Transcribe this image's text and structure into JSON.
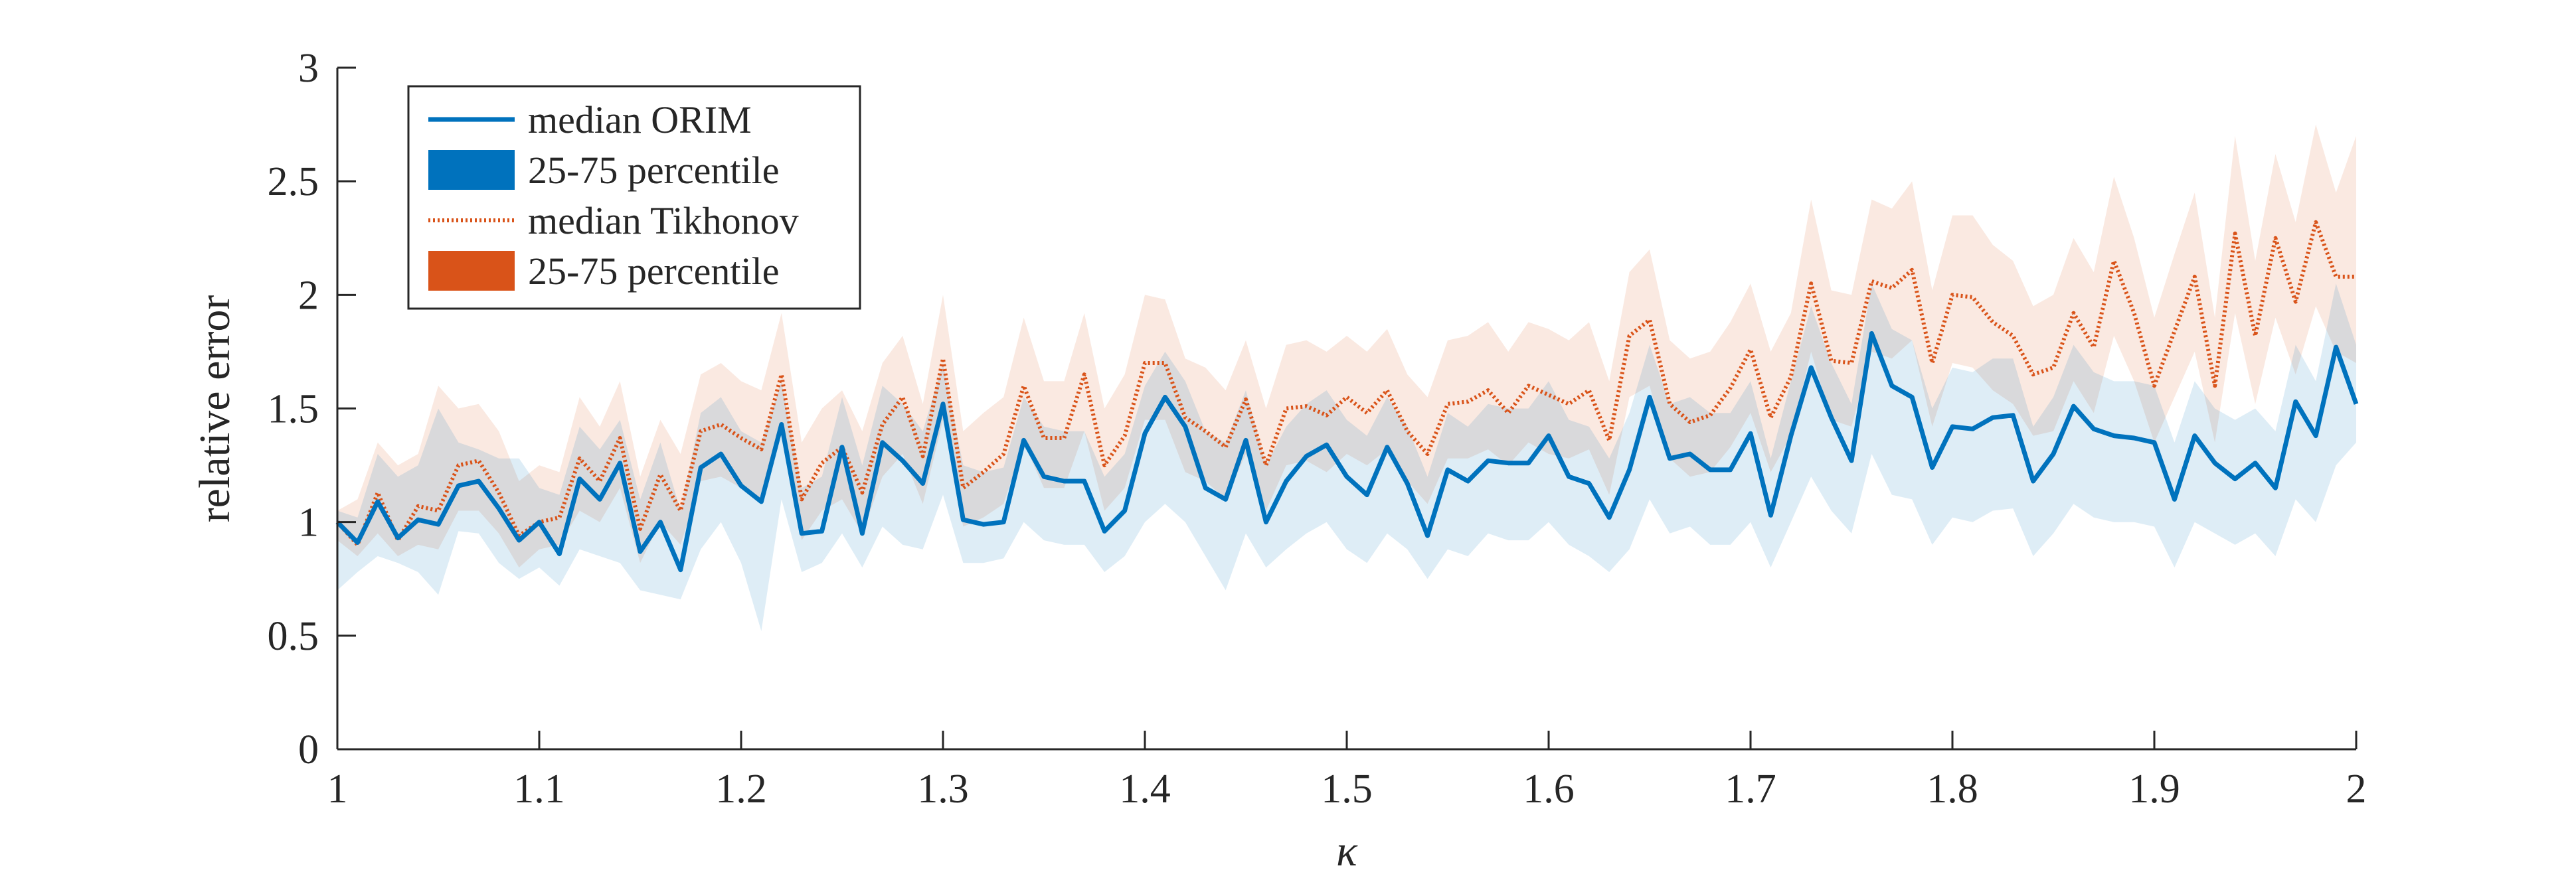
{
  "chart_data": {
    "type": "line",
    "xlabel": "κ",
    "ylabel": "relative error",
    "xlim": [
      1,
      2
    ],
    "ylim": [
      0,
      3
    ],
    "xticks": [
      "1",
      "1.1",
      "1.2",
      "1.3",
      "1.4",
      "1.5",
      "1.6",
      "1.7",
      "1.8",
      "1.9",
      "2"
    ],
    "yticks": [
      "0",
      "0.5",
      "1",
      "1.5",
      "2",
      "2.5",
      "3"
    ],
    "grid": false,
    "legend_position": "top-left",
    "legend": [
      {
        "label": "median ORIM",
        "kind": "line",
        "color": "#0072BD"
      },
      {
        "label": "25-75 percentile",
        "kind": "patch",
        "color": "#0072BD"
      },
      {
        "label": "median Tikhonov",
        "kind": "dotted-line",
        "color": "#D95319"
      },
      {
        "label": "25-75 percentile",
        "kind": "patch",
        "color": "#D95319"
      }
    ],
    "x": [
      1.0,
      1.01,
      1.02,
      1.03,
      1.04,
      1.05,
      1.06,
      1.07,
      1.08,
      1.09,
      1.1,
      1.11,
      1.12,
      1.13,
      1.14,
      1.15,
      1.16,
      1.17,
      1.18,
      1.19,
      1.2,
      1.21,
      1.22,
      1.23,
      1.24,
      1.25,
      1.26,
      1.27,
      1.28,
      1.29,
      1.3,
      1.31,
      1.32,
      1.33,
      1.34,
      1.35,
      1.36,
      1.37,
      1.38,
      1.39,
      1.4,
      1.41,
      1.42,
      1.43,
      1.44,
      1.45,
      1.46,
      1.47,
      1.48,
      1.49,
      1.5,
      1.51,
      1.52,
      1.53,
      1.54,
      1.55,
      1.56,
      1.57,
      1.58,
      1.59,
      1.6,
      1.61,
      1.62,
      1.63,
      1.64,
      1.65,
      1.66,
      1.67,
      1.68,
      1.69,
      1.7,
      1.71,
      1.72,
      1.73,
      1.74,
      1.75,
      1.76,
      1.77,
      1.78,
      1.79,
      1.8,
      1.81,
      1.82,
      1.83,
      1.84,
      1.85,
      1.86,
      1.87,
      1.88,
      1.89,
      1.9,
      1.91,
      1.92,
      1.93,
      1.94,
      1.95,
      1.96,
      1.97,
      1.98,
      1.99,
      2.0
    ],
    "series": [
      {
        "name": "median ORIM",
        "color": "#0072BD",
        "values": [
          1.0,
          0.91,
          1.09,
          0.93,
          1.01,
          0.99,
          1.16,
          1.18,
          1.06,
          0.92,
          1.0,
          0.86,
          1.19,
          1.1,
          1.26,
          0.87,
          1.0,
          0.79,
          1.24,
          1.3,
          1.16,
          1.09,
          1.43,
          0.95,
          0.96,
          1.33,
          0.95,
          1.35,
          1.27,
          1.17,
          1.52,
          1.01,
          0.99,
          1.0,
          1.36,
          1.2,
          1.18,
          1.18,
          0.96,
          1.05,
          1.39,
          1.55,
          1.42,
          1.15,
          1.1,
          1.36,
          1.0,
          1.18,
          1.29,
          1.34,
          1.2,
          1.12,
          1.33,
          1.17,
          0.94,
          1.23,
          1.18,
          1.27,
          1.26,
          1.26,
          1.38,
          1.2,
          1.17,
          1.02,
          1.23,
          1.55,
          1.28,
          1.3,
          1.23,
          1.23,
          1.39,
          1.03,
          1.38,
          1.68,
          1.46,
          1.27,
          1.83,
          1.6,
          1.55,
          1.24,
          1.42,
          1.41,
          1.46,
          1.47,
          1.18,
          1.3,
          1.51,
          1.41,
          1.38,
          1.37,
          1.35,
          1.1,
          1.38,
          1.26,
          1.19,
          1.26,
          1.15,
          1.53,
          1.38,
          1.77,
          1.52
        ]
      },
      {
        "name": "25-75 percentile",
        "color": "#0072BD",
        "band_low": [
          0.7,
          0.78,
          0.85,
          0.82,
          0.78,
          0.68,
          0.96,
          0.95,
          0.82,
          0.75,
          0.8,
          0.72,
          0.88,
          0.85,
          0.82,
          0.7,
          0.68,
          0.66,
          0.88,
          1.0,
          0.82,
          0.52,
          1.1,
          0.78,
          0.82,
          0.95,
          0.8,
          0.98,
          0.9,
          0.88,
          1.12,
          0.82,
          0.82,
          0.84,
          1.0,
          0.92,
          0.9,
          0.9,
          0.78,
          0.85,
          1.0,
          1.08,
          1.0,
          0.85,
          0.7,
          0.95,
          0.8,
          0.88,
          0.95,
          1.0,
          0.88,
          0.82,
          0.95,
          0.88,
          0.75,
          0.88,
          0.85,
          0.95,
          0.92,
          0.92,
          1.0,
          0.9,
          0.85,
          0.78,
          0.88,
          1.1,
          0.95,
          0.98,
          0.9,
          0.9,
          1.0,
          0.8,
          1.0,
          1.2,
          1.05,
          0.95,
          1.3,
          1.12,
          1.1,
          0.9,
          1.02,
          1.0,
          1.05,
          1.06,
          0.85,
          0.95,
          1.08,
          1.02,
          1.0,
          1.0,
          0.98,
          0.8,
          1.0,
          0.95,
          0.9,
          0.95,
          0.85,
          1.1,
          1.0,
          1.25,
          1.35
        ],
        "band_high": [
          1.05,
          1.02,
          1.3,
          1.2,
          1.25,
          1.5,
          1.35,
          1.32,
          1.28,
          1.28,
          1.15,
          1.12,
          1.42,
          1.32,
          1.45,
          1.1,
          1.35,
          1.05,
          1.48,
          1.55,
          1.4,
          1.35,
          1.62,
          1.15,
          1.2,
          1.55,
          1.25,
          1.6,
          1.52,
          1.4,
          1.7,
          1.25,
          1.22,
          1.24,
          1.55,
          1.42,
          1.4,
          1.4,
          1.2,
          1.3,
          1.6,
          1.75,
          1.62,
          1.4,
          1.35,
          1.58,
          1.25,
          1.42,
          1.52,
          1.58,
          1.45,
          1.38,
          1.55,
          1.42,
          1.2,
          1.48,
          1.42,
          1.52,
          1.5,
          1.5,
          1.62,
          1.45,
          1.42,
          1.28,
          1.48,
          1.78,
          1.52,
          1.55,
          1.48,
          1.48,
          1.62,
          1.28,
          1.62,
          1.95,
          1.7,
          1.52,
          2.05,
          1.85,
          1.8,
          1.5,
          1.68,
          1.66,
          1.72,
          1.72,
          1.42,
          1.55,
          1.78,
          1.66,
          1.62,
          1.62,
          1.6,
          1.35,
          1.62,
          1.5,
          1.45,
          1.5,
          1.4,
          1.78,
          1.62,
          2.05,
          1.78
        ]
      },
      {
        "name": "median Tikhonov",
        "color": "#D95319",
        "values": [
          1.0,
          0.9,
          1.13,
          0.92,
          1.07,
          1.05,
          1.25,
          1.27,
          1.13,
          0.94,
          1.0,
          1.02,
          1.28,
          1.18,
          1.37,
          0.97,
          1.21,
          1.05,
          1.4,
          1.43,
          1.37,
          1.32,
          1.65,
          1.1,
          1.26,
          1.33,
          1.13,
          1.43,
          1.55,
          1.29,
          1.72,
          1.15,
          1.22,
          1.3,
          1.6,
          1.37,
          1.37,
          1.65,
          1.25,
          1.38,
          1.7,
          1.7,
          1.46,
          1.4,
          1.33,
          1.54,
          1.25,
          1.5,
          1.51,
          1.47,
          1.55,
          1.48,
          1.58,
          1.4,
          1.3,
          1.52,
          1.53,
          1.58,
          1.48,
          1.6,
          1.56,
          1.52,
          1.58,
          1.36,
          1.82,
          1.89,
          1.52,
          1.44,
          1.47,
          1.59,
          1.76,
          1.46,
          1.64,
          2.05,
          1.71,
          1.7,
          2.06,
          2.03,
          2.11,
          1.7,
          2.0,
          1.99,
          1.88,
          1.82,
          1.65,
          1.68,
          1.92,
          1.77,
          2.15,
          1.92,
          1.6,
          1.84,
          2.08,
          1.6,
          2.27,
          1.82,
          2.25,
          1.97,
          2.32,
          2.08,
          2.08
        ]
      },
      {
        "name": "25-75 percentile",
        "color": "#D95319",
        "band_low": [
          0.92,
          0.85,
          0.95,
          0.85,
          0.9,
          0.88,
          1.05,
          1.05,
          0.95,
          0.8,
          0.88,
          0.9,
          1.05,
          1.0,
          1.15,
          0.82,
          1.0,
          0.9,
          1.18,
          1.2,
          1.15,
          1.1,
          1.4,
          0.92,
          1.05,
          1.1,
          0.95,
          1.2,
          1.3,
          1.08,
          1.45,
          0.98,
          1.02,
          1.08,
          1.35,
          1.15,
          1.15,
          1.4,
          1.05,
          1.15,
          1.45,
          1.45,
          1.22,
          1.18,
          1.1,
          1.3,
          1.05,
          1.25,
          1.27,
          1.22,
          1.3,
          1.25,
          1.32,
          1.18,
          1.08,
          1.28,
          1.28,
          1.32,
          1.25,
          1.35,
          1.3,
          1.28,
          1.32,
          1.12,
          1.55,
          1.6,
          1.28,
          1.2,
          1.22,
          1.33,
          1.48,
          1.22,
          1.38,
          1.75,
          1.45,
          1.42,
          1.75,
          1.72,
          1.8,
          1.42,
          1.7,
          1.68,
          1.58,
          1.52,
          1.38,
          1.4,
          1.62,
          1.48,
          1.82,
          1.62,
          1.35,
          1.55,
          1.75,
          1.35,
          1.92,
          1.52,
          1.9,
          1.65,
          1.95,
          1.75,
          1.7
        ],
        "band_high": [
          1.05,
          1.1,
          1.35,
          1.25,
          1.3,
          1.6,
          1.5,
          1.52,
          1.4,
          1.18,
          1.25,
          1.22,
          1.55,
          1.42,
          1.62,
          1.2,
          1.45,
          1.3,
          1.65,
          1.7,
          1.62,
          1.58,
          1.92,
          1.35,
          1.5,
          1.58,
          1.4,
          1.7,
          1.82,
          1.52,
          2.0,
          1.4,
          1.48,
          1.55,
          1.9,
          1.62,
          1.62,
          1.92,
          1.5,
          1.65,
          2.0,
          1.98,
          1.72,
          1.68,
          1.58,
          1.8,
          1.5,
          1.78,
          1.8,
          1.75,
          1.82,
          1.75,
          1.85,
          1.65,
          1.55,
          1.8,
          1.82,
          1.88,
          1.75,
          1.88,
          1.85,
          1.8,
          1.88,
          1.62,
          2.1,
          2.2,
          1.8,
          1.72,
          1.75,
          1.88,
          2.05,
          1.75,
          1.92,
          2.42,
          2.02,
          2.0,
          2.42,
          2.38,
          2.5,
          2.02,
          2.35,
          2.35,
          2.22,
          2.15,
          1.95,
          2.0,
          2.25,
          2.1,
          2.52,
          2.25,
          1.9,
          2.18,
          2.45,
          1.9,
          2.7,
          2.15,
          2.62,
          2.32,
          2.75,
          2.45,
          2.7
        ]
      }
    ]
  }
}
